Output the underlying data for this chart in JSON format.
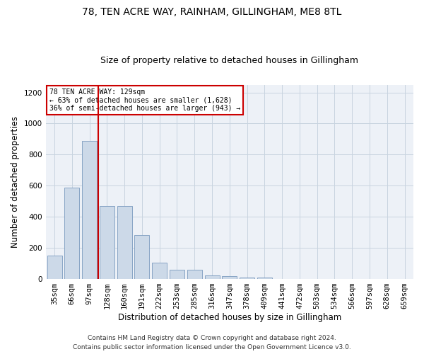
{
  "title": "78, TEN ACRE WAY, RAINHAM, GILLINGHAM, ME8 8TL",
  "subtitle": "Size of property relative to detached houses in Gillingham",
  "xlabel": "Distribution of detached houses by size in Gillingham",
  "ylabel": "Number of detached properties",
  "bar_labels": [
    "35sqm",
    "66sqm",
    "97sqm",
    "128sqm",
    "160sqm",
    "191sqm",
    "222sqm",
    "253sqm",
    "285sqm",
    "316sqm",
    "347sqm",
    "378sqm",
    "409sqm",
    "441sqm",
    "472sqm",
    "503sqm",
    "534sqm",
    "566sqm",
    "597sqm",
    "628sqm",
    "659sqm"
  ],
  "bar_values": [
    152,
    590,
    890,
    470,
    470,
    283,
    105,
    60,
    58,
    25,
    18,
    10,
    10,
    0,
    0,
    0,
    0,
    0,
    0,
    0,
    0
  ],
  "bar_color": "#ccd9e8",
  "bar_edge_color": "#7a9bbf",
  "vline_color": "#cc0000",
  "ylim": [
    0,
    1250
  ],
  "yticks": [
    0,
    200,
    400,
    600,
    800,
    1000,
    1200
  ],
  "annotation_title": "78 TEN ACRE WAY: 129sqm",
  "annotation_line1": "← 63% of detached houses are smaller (1,628)",
  "annotation_line2": "36% of semi-detached houses are larger (943) →",
  "annotation_box_color": "#ffffff",
  "annotation_box_edge": "#cc0000",
  "footer_line1": "Contains HM Land Registry data © Crown copyright and database right 2024.",
  "footer_line2": "Contains public sector information licensed under the Open Government Licence v3.0.",
  "title_fontsize": 10,
  "subtitle_fontsize": 9,
  "xlabel_fontsize": 8.5,
  "ylabel_fontsize": 8.5,
  "tick_fontsize": 7.5,
  "footer_fontsize": 6.5,
  "grid_color": "#c8d4e0",
  "background_color": "#edf1f7"
}
